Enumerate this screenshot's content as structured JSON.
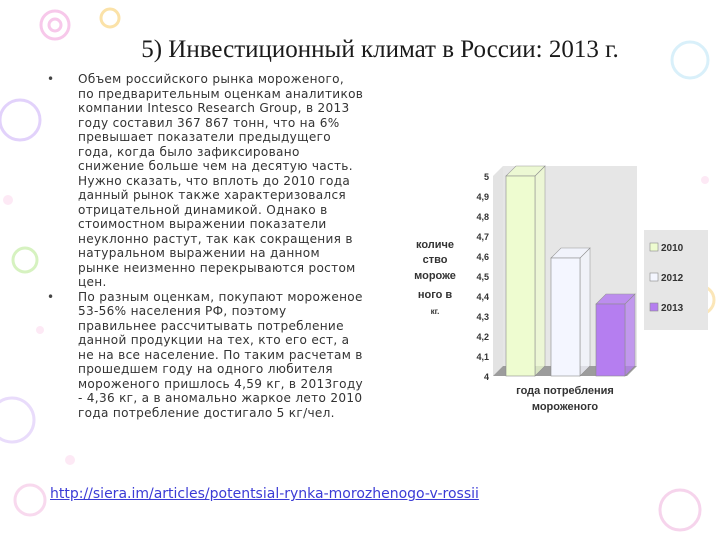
{
  "slide": {
    "title": "5) Инвестиционный климат в России: 2013 г.",
    "bullets": [
      "Объем российского рынка мороженого, по предварительным оценкам аналитиков компании Intesco Research Group, в 2013 году составил 367 867 тонн, что на 6% превышает показатели предыдущего года, когда было зафиксировано снижение больше чем на десятую часть. Нужно сказать, что вплоть до 2010 года данный рынок также характеризовался отрицательной динамикой. Однако в стоимостном выражении показатели неуклонно растут, так как сокращения в натуральном выражении на данном рынке неизменно перекрываются ростом цен.",
      "По разным оценкам, покупают мороженое 53-56% населения РФ, поэтому правильнее рассчитывать потребление данной продукции на тех, кто его ест, а не на все население. По таким расчетам в прошедшем году на одного любителя мороженого пришлось 4,59 кг, в 2013году - 4,36 кг, а в аномально жаркое лето 2010 года потребление достигало 5 кг/чел."
    ],
    "link": "http://siera.im/articles/potentsial-rynka-morozhenogo-v-rossii"
  },
  "chart_data": {
    "type": "bar",
    "categories": [
      "2010",
      "2012",
      "2013"
    ],
    "values": [
      5,
      4.59,
      4.36
    ],
    "colors": [
      "#eefcd0",
      "#f4f6ff",
      "#b57ef0"
    ],
    "ylabel_lines": [
      "количе",
      "ство",
      "мороже",
      "ного в",
      "кг."
    ],
    "xlabel_lines": [
      "года потребления",
      "мороженого"
    ],
    "yticks": [
      "5",
      "4,9",
      "4,8",
      "4,7",
      "4,6",
      "4,5",
      "4,4",
      "4,3",
      "4,2",
      "4,1",
      "4"
    ],
    "ylim": [
      4,
      5
    ],
    "legend": [
      "2010",
      "2012",
      "2013"
    ],
    "legend_position": "right"
  }
}
